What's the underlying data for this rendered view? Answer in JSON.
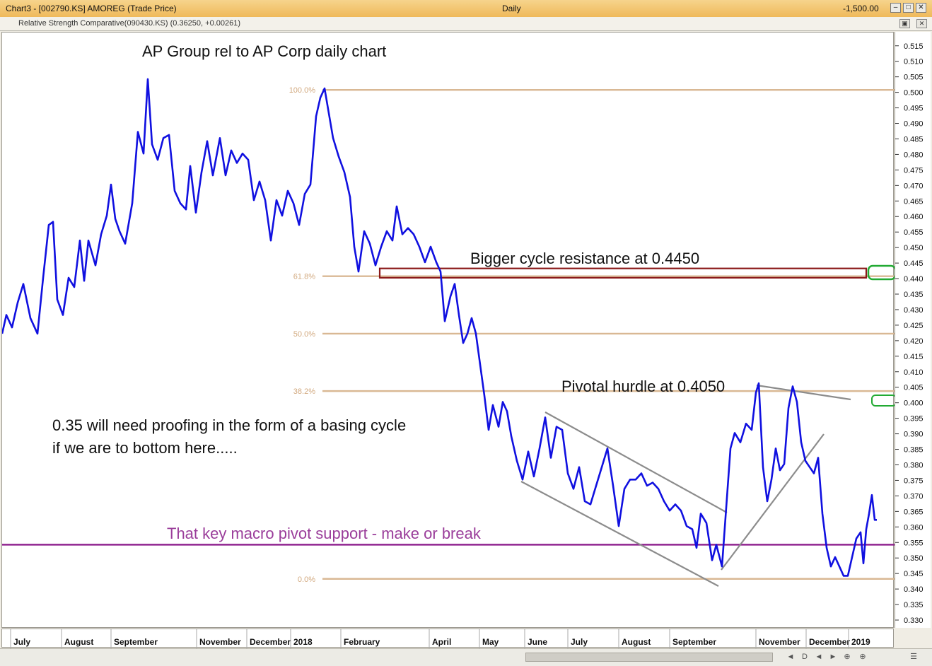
{
  "window": {
    "title": "Chart3 - [002790.KS] AMOREG (Trade Price)",
    "interval": "Daily",
    "right_value": "-1,500.00"
  },
  "indicator_label": "Relative Strength Comparative(090430.KS) (0.36250, +0.00261)",
  "annotations": {
    "title": "AP Group rel to AP Corp daily chart",
    "resistance": "Bigger cycle resistance at 0.4450",
    "pivotal": "Pivotal hurdle at 0.4050",
    "proofing_line1": "0.35 will need proofing in the form of a basing cycle",
    "proofing_line2": "if we are to bottom here.....",
    "support": "That key macro pivot support - make or break"
  },
  "scroll_controls": [
    "◄",
    "D",
    "◄",
    "►",
    "⊕"
  ],
  "chart_data": {
    "type": "line",
    "series": [
      {
        "color": "#1010e0",
        "points": [
          [
            0,
            0.4225
          ],
          [
            6,
            0.4285
          ],
          [
            14,
            0.4245
          ],
          [
            22,
            0.4325
          ],
          [
            30,
            0.4385
          ],
          [
            40,
            0.4275
          ],
          [
            50,
            0.4225
          ],
          [
            58,
            0.4405
          ],
          [
            66,
            0.4575
          ],
          [
            72,
            0.4585
          ],
          [
            78,
            0.4335
          ],
          [
            86,
            0.4285
          ],
          [
            94,
            0.4405
          ],
          [
            102,
            0.4375
          ],
          [
            110,
            0.4525
          ],
          [
            116,
            0.4395
          ],
          [
            122,
            0.4525
          ],
          [
            132,
            0.4445
          ],
          [
            140,
            0.4545
          ],
          [
            148,
            0.4605
          ],
          [
            154,
            0.4705
          ],
          [
            160,
            0.4595
          ],
          [
            166,
            0.4555
          ],
          [
            174,
            0.4515
          ],
          [
            184,
            0.4645
          ],
          [
            192,
            0.4875
          ],
          [
            200,
            0.4805
          ],
          [
            206,
            0.5045
          ],
          [
            212,
            0.4835
          ],
          [
            220,
            0.4785
          ],
          [
            228,
            0.4855
          ],
          [
            236,
            0.4865
          ],
          [
            244,
            0.4685
          ],
          [
            252,
            0.4645
          ],
          [
            260,
            0.4625
          ],
          [
            266,
            0.4765
          ],
          [
            274,
            0.4615
          ],
          [
            282,
            0.4745
          ],
          [
            290,
            0.4845
          ],
          [
            298,
            0.4735
          ],
          [
            308,
            0.4855
          ],
          [
            316,
            0.4735
          ],
          [
            324,
            0.4815
          ],
          [
            332,
            0.4775
          ],
          [
            340,
            0.4805
          ],
          [
            348,
            0.4785
          ],
          [
            356,
            0.4655
          ],
          [
            364,
            0.4715
          ],
          [
            372,
            0.4655
          ],
          [
            380,
            0.4525
          ],
          [
            388,
            0.4655
          ],
          [
            396,
            0.4605
          ],
          [
            404,
            0.4685
          ],
          [
            412,
            0.4645
          ],
          [
            420,
            0.4575
          ],
          [
            428,
            0.4675
          ],
          [
            436,
            0.4705
          ],
          [
            444,
            0.4925
          ],
          [
            450,
            0.4985
          ],
          [
            456,
            0.5015
          ],
          [
            462,
            0.4935
          ],
          [
            468,
            0.4855
          ],
          [
            476,
            0.4795
          ],
          [
            484,
            0.4745
          ],
          [
            492,
            0.4665
          ],
          [
            498,
            0.4505
          ],
          [
            504,
            0.4425
          ],
          [
            512,
            0.4555
          ],
          [
            520,
            0.4515
          ],
          [
            528,
            0.4445
          ],
          [
            536,
            0.4505
          ],
          [
            544,
            0.4555
          ],
          [
            552,
            0.4525
          ],
          [
            558,
            0.4635
          ],
          [
            566,
            0.4545
          ],
          [
            574,
            0.4565
          ],
          [
            582,
            0.4545
          ],
          [
            590,
            0.4505
          ],
          [
            598,
            0.4455
          ],
          [
            606,
            0.4505
          ],
          [
            614,
            0.4455
          ],
          [
            620,
            0.4425
          ],
          [
            626,
            0.4265
          ],
          [
            634,
            0.4345
          ],
          [
            640,
            0.4385
          ],
          [
            646,
            0.4285
          ],
          [
            652,
            0.4195
          ],
          [
            658,
            0.4225
          ],
          [
            664,
            0.4275
          ],
          [
            670,
            0.4225
          ],
          [
            676,
            0.4125
          ],
          [
            682,
            0.4025
          ],
          [
            688,
            0.3915
          ],
          [
            694,
            0.3995
          ],
          [
            702,
            0.3925
          ],
          [
            708,
            0.4005
          ],
          [
            714,
            0.3975
          ],
          [
            720,
            0.3895
          ],
          [
            728,
            0.3815
          ],
          [
            736,
            0.3755
          ],
          [
            744,
            0.3845
          ],
          [
            752,
            0.3765
          ],
          [
            760,
            0.3855
          ],
          [
            768,
            0.3955
          ],
          [
            776,
            0.3825
          ],
          [
            784,
            0.3925
          ],
          [
            792,
            0.3915
          ],
          [
            800,
            0.3775
          ],
          [
            808,
            0.3725
          ],
          [
            816,
            0.3795
          ],
          [
            824,
            0.3685
          ],
          [
            832,
            0.3675
          ],
          [
            840,
            0.3735
          ],
          [
            848,
            0.3795
          ],
          [
            856,
            0.3855
          ],
          [
            864,
            0.3735
          ],
          [
            872,
            0.3605
          ],
          [
            880,
            0.3725
          ],
          [
            888,
            0.3755
          ],
          [
            896,
            0.3755
          ],
          [
            904,
            0.3775
          ],
          [
            912,
            0.3735
          ],
          [
            920,
            0.3745
          ],
          [
            928,
            0.3725
          ],
          [
            936,
            0.3685
          ],
          [
            944,
            0.3655
          ],
          [
            952,
            0.3675
          ],
          [
            960,
            0.3655
          ],
          [
            968,
            0.3605
          ],
          [
            976,
            0.3595
          ],
          [
            982,
            0.3535
          ],
          [
            988,
            0.3645
          ],
          [
            996,
            0.3615
          ],
          [
            1004,
            0.3495
          ],
          [
            1010,
            0.3545
          ],
          [
            1018,
            0.3475
          ],
          [
            1024,
            0.3665
          ],
          [
            1030,
            0.3855
          ],
          [
            1036,
            0.3905
          ],
          [
            1044,
            0.3875
          ],
          [
            1052,
            0.3935
          ],
          [
            1060,
            0.3915
          ],
          [
            1066,
            0.4035
          ],
          [
            1070,
            0.4065
          ],
          [
            1076,
            0.3795
          ],
          [
            1082,
            0.3685
          ],
          [
            1088,
            0.3755
          ],
          [
            1094,
            0.3855
          ],
          [
            1100,
            0.3785
          ],
          [
            1106,
            0.3805
          ],
          [
            1112,
            0.3985
          ],
          [
            1118,
            0.4055
          ],
          [
            1124,
            0.4005
          ],
          [
            1130,
            0.3875
          ],
          [
            1136,
            0.3815
          ],
          [
            1142,
            0.3795
          ],
          [
            1148,
            0.3775
          ],
          [
            1154,
            0.3825
          ],
          [
            1160,
            0.3645
          ],
          [
            1166,
            0.3535
          ],
          [
            1172,
            0.3475
          ],
          [
            1178,
            0.3505
          ],
          [
            1184,
            0.3475
          ],
          [
            1190,
            0.3445
          ],
          [
            1196,
            0.3445
          ],
          [
            1202,
            0.3505
          ],
          [
            1208,
            0.3565
          ],
          [
            1214,
            0.3585
          ],
          [
            1218,
            0.3485
          ],
          [
            1222,
            0.3595
          ],
          [
            1226,
            0.3645
          ],
          [
            1230,
            0.3705
          ],
          [
            1234,
            0.3625
          ],
          [
            1237,
            0.3625
          ]
        ]
      }
    ],
    "fib_levels": [
      {
        "label": "100.0%",
        "value": 0.501
      },
      {
        "label": "61.8%",
        "value": 0.441
      },
      {
        "label": "50.0%",
        "value": 0.4225
      },
      {
        "label": "38.2%",
        "value": 0.404
      },
      {
        "label": "0.0%",
        "value": 0.3435
      }
    ],
    "support_level": {
      "value": 0.3545,
      "color": "#8b1a8b"
    },
    "resistance_zone": {
      "low": 0.4405,
      "high": 0.4435,
      "color": "#8b1a1a"
    },
    "ylim": [
      0.3275,
      0.5195
    ],
    "y_ticks": [
      0.515,
      0.51,
      0.505,
      0.5,
      0.495,
      0.49,
      0.485,
      0.48,
      0.475,
      0.47,
      0.465,
      0.46,
      0.455,
      0.45,
      0.445,
      0.44,
      0.435,
      0.43,
      0.425,
      0.42,
      0.415,
      0.41,
      0.405,
      0.4,
      0.395,
      0.39,
      0.385,
      0.38,
      0.375,
      0.37,
      0.365,
      0.36,
      0.355,
      0.35,
      0.345,
      0.34,
      0.335,
      0.33
    ],
    "x_ticks": [
      "July",
      "August",
      "September",
      "November",
      "December",
      "2018",
      "February",
      "April",
      "May",
      "June",
      "July",
      "August",
      "September",
      "November",
      "December",
      "2019"
    ],
    "colors": {
      "fib": "#d9b894",
      "line": "#1010e0",
      "trend": "#8c8c8c",
      "marker": "#22aa33"
    },
    "grid": false
  }
}
